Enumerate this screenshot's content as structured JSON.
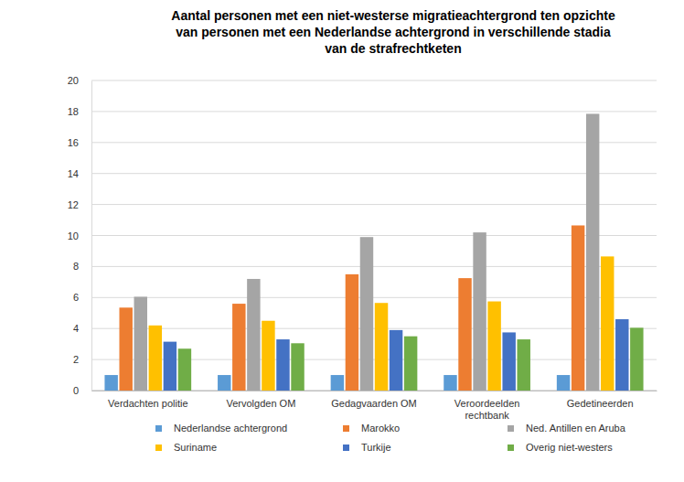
{
  "chart_data": {
    "type": "bar",
    "title": [
      "Aantal personen met een niet-westerse migratieachtergrond ten opzichte",
      "van personen met een Nederlandse achtergrond in verschillende stadia",
      "van de strafrechtketen"
    ],
    "categories": [
      "Verdachten politie",
      "Vervolgden OM",
      "Gedagvaarden OM",
      "Veroordeelden rechtbank",
      "Gedetineerden"
    ],
    "series": [
      {
        "name": "Nederlandse achtergrond",
        "color": "#5b9bd5",
        "values": [
          1,
          1,
          1,
          1,
          1
        ]
      },
      {
        "name": "Marokko",
        "color": "#ed7d31",
        "values": [
          5.35,
          5.6,
          7.5,
          7.25,
          10.65
        ]
      },
      {
        "name": "Ned. Antillen en Aruba",
        "color": "#a5a5a5",
        "values": [
          6.05,
          7.2,
          9.9,
          10.2,
          17.85
        ]
      },
      {
        "name": "Suriname",
        "color": "#ffc000",
        "values": [
          4.2,
          4.5,
          5.65,
          5.75,
          8.65
        ]
      },
      {
        "name": "Turkije",
        "color": "#4472c4",
        "values": [
          3.15,
          3.3,
          3.9,
          3.75,
          4.6
        ]
      },
      {
        "name": "Overig niet-westers",
        "color": "#70ad47",
        "values": [
          2.7,
          3.05,
          3.5,
          3.3,
          4.05
        ]
      }
    ],
    "ylim": [
      0,
      20
    ],
    "yticks": [
      0,
      2,
      4,
      6,
      8,
      10,
      12,
      14,
      16,
      18,
      20
    ],
    "grid": true,
    "legend": "bottom"
  }
}
